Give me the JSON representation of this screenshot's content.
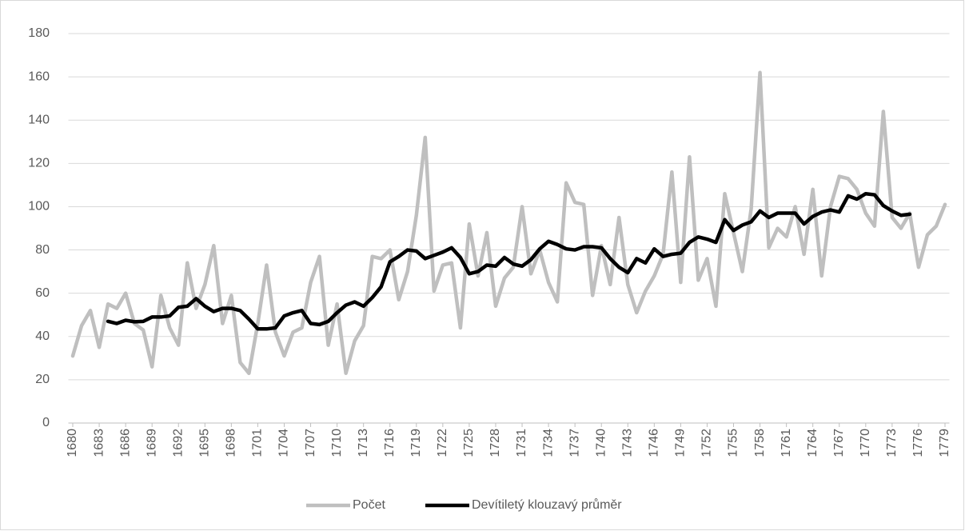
{
  "chart_data": {
    "type": "line",
    "categories": [
      "1680",
      null,
      null,
      "1683",
      null,
      null,
      "1686",
      null,
      null,
      "1689",
      null,
      null,
      "1692",
      null,
      null,
      "1695",
      null,
      null,
      "1698",
      null,
      null,
      "1701",
      null,
      null,
      "1704",
      null,
      null,
      "1707",
      null,
      null,
      "1710",
      null,
      null,
      "1713",
      null,
      null,
      "1716",
      null,
      null,
      "1719",
      null,
      null,
      "1722",
      null,
      null,
      "1725",
      null,
      null,
      "1728",
      null,
      null,
      "1731",
      null,
      null,
      "1734",
      null,
      null,
      "1737",
      null,
      null,
      "1740",
      null,
      null,
      "1743",
      null,
      null,
      "1746",
      null,
      null,
      "1749",
      null,
      null,
      "1752",
      null,
      null,
      "1755",
      null,
      null,
      "1758",
      null,
      null,
      "1761",
      null,
      null,
      "1764",
      null,
      null,
      "1767",
      null,
      null,
      "1770",
      null,
      null,
      "1773",
      null,
      null,
      "1776",
      null,
      null,
      "1779"
    ],
    "series": [
      {
        "name": "Počet",
        "color": "#bfbfbf",
        "values": [
          31,
          45,
          52,
          35,
          55,
          53,
          60,
          46,
          43,
          26,
          59,
          44,
          36,
          74,
          53,
          64,
          82,
          46,
          59,
          28,
          23,
          46,
          73,
          42,
          31,
          42,
          44,
          65,
          77,
          36,
          55,
          23,
          38,
          45,
          77,
          76,
          80,
          57,
          70,
          96,
          132,
          61,
          73,
          74,
          44,
          92,
          68,
          88,
          54,
          67,
          72,
          100,
          69,
          80,
          65,
          56,
          111,
          102,
          101,
          59,
          82,
          64,
          95,
          64,
          51,
          61,
          68,
          78,
          116,
          65,
          123,
          66,
          76,
          54,
          106,
          88,
          70,
          99,
          162,
          81,
          90,
          86,
          100,
          78,
          108,
          68,
          100,
          114,
          113,
          108,
          97,
          91,
          144,
          95,
          90,
          97,
          72,
          87,
          91,
          101
        ]
      },
      {
        "name": "Devítiletý klouzavý průměr",
        "color": "#000000",
        "values": [
          null,
          null,
          null,
          null,
          47,
          46,
          47.5,
          46.8,
          47,
          49,
          49,
          49.5,
          53.5,
          54,
          57.5,
          54,
          51.5,
          53,
          53,
          52,
          48,
          43.5,
          43.5,
          44,
          49.5,
          51,
          52,
          46,
          45.5,
          47,
          51,
          54.5,
          56,
          54,
          58,
          63,
          74.5,
          77,
          80,
          79.5,
          76,
          77.5,
          79,
          81,
          76.5,
          69,
          70,
          73,
          72.5,
          76.5,
          73.5,
          72.5,
          75.5,
          80.5,
          84,
          82.5,
          80.5,
          80,
          81.5,
          81.5,
          81,
          76,
          72,
          69.5,
          76,
          74,
          80.5,
          77,
          78,
          78.5,
          83.5,
          86,
          85,
          83.5,
          94,
          89,
          91.5,
          93,
          98,
          95,
          97,
          97,
          97,
          92,
          95.5,
          97.5,
          98.5,
          97.5,
          105,
          103.5,
          106,
          105.5,
          100.5,
          98,
          96,
          96.5,
          null,
          null,
          null,
          null
        ]
      }
    ],
    "ylim": [
      0,
      180
    ],
    "yticks": [
      0,
      20,
      40,
      60,
      80,
      100,
      120,
      140,
      160,
      180
    ],
    "grid": true,
    "legend": "bottom"
  }
}
